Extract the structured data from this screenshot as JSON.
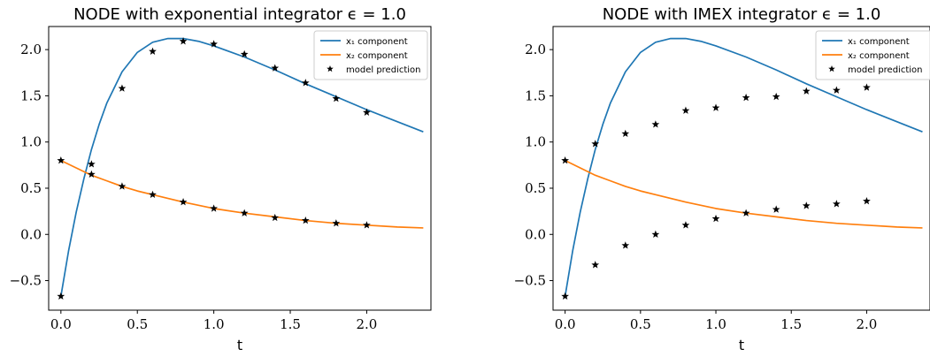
{
  "chart_data": [
    {
      "type": "line",
      "title": "NODE with exponential integrator ϵ = 1.0",
      "xlabel": "t",
      "ylabel": "",
      "xlim": [
        -0.08,
        2.42
      ],
      "ylim": [
        -0.82,
        2.25
      ],
      "xticks": [
        0.0,
        0.5,
        1.0,
        1.5,
        2.0
      ],
      "xtick_labels": [
        "0.0",
        "0.5",
        "1.0",
        "1.5",
        "2.0"
      ],
      "yticks": [
        -0.5,
        0.0,
        0.5,
        1.0,
        1.5,
        2.0
      ],
      "ytick_labels": [
        "−0.5",
        "0.0",
        "0.5",
        "1.0",
        "1.5",
        "2.0"
      ],
      "grid": false,
      "legend_position": "top-right",
      "series": [
        {
          "name": "x₁ component",
          "kind": "line",
          "color": "#1f77b4",
          "x": [
            0.0,
            0.05,
            0.1,
            0.15,
            0.2,
            0.25,
            0.3,
            0.4,
            0.5,
            0.6,
            0.7,
            0.8,
            0.9,
            1.0,
            1.2,
            1.4,
            1.6,
            1.8,
            2.0,
            2.2,
            2.37
          ],
          "y": [
            -0.67,
            -0.18,
            0.24,
            0.6,
            0.92,
            1.19,
            1.42,
            1.76,
            1.97,
            2.08,
            2.12,
            2.12,
            2.09,
            2.04,
            1.92,
            1.78,
            1.63,
            1.49,
            1.35,
            1.22,
            1.11
          ]
        },
        {
          "name": "x₂ component",
          "kind": "line",
          "color": "#ff7f0e",
          "x": [
            0.0,
            0.1,
            0.2,
            0.3,
            0.4,
            0.5,
            0.6,
            0.8,
            1.0,
            1.2,
            1.4,
            1.6,
            1.8,
            2.0,
            2.2,
            2.37
          ],
          "y": [
            0.8,
            0.72,
            0.64,
            0.58,
            0.52,
            0.47,
            0.43,
            0.35,
            0.28,
            0.23,
            0.19,
            0.15,
            0.12,
            0.1,
            0.08,
            0.07
          ]
        },
        {
          "name": "model prediction",
          "kind": "scatter",
          "marker": "star",
          "color": "#000000",
          "x": [
            0.0,
            0.2,
            0.4,
            0.6,
            0.8,
            1.0,
            1.2,
            1.4,
            1.6,
            1.8,
            2.0,
            0.0,
            0.2,
            0.4,
            0.6,
            0.8,
            1.0,
            1.2,
            1.4,
            1.6,
            1.8,
            2.0
          ],
          "y": [
            -0.67,
            0.76,
            1.58,
            1.98,
            2.09,
            2.06,
            1.95,
            1.8,
            1.64,
            1.47,
            1.32,
            0.8,
            0.65,
            0.52,
            0.43,
            0.35,
            0.28,
            0.23,
            0.18,
            0.15,
            0.12,
            0.1
          ]
        }
      ]
    },
    {
      "type": "line",
      "title": "NODE with IMEX integrator ϵ = 1.0",
      "xlabel": "t",
      "ylabel": "",
      "xlim": [
        -0.08,
        2.42
      ],
      "ylim": [
        -0.82,
        2.25
      ],
      "xticks": [
        0.0,
        0.5,
        1.0,
        1.5,
        2.0
      ],
      "xtick_labels": [
        "0.0",
        "0.5",
        "1.0",
        "1.5",
        "2.0"
      ],
      "yticks": [
        -0.5,
        0.0,
        0.5,
        1.0,
        1.5,
        2.0
      ],
      "ytick_labels": [
        "−0.5",
        "0.0",
        "0.5",
        "1.0",
        "1.5",
        "2.0"
      ],
      "grid": false,
      "legend_position": "top-right",
      "series": [
        {
          "name": "x₁ component",
          "kind": "line",
          "color": "#1f77b4",
          "x": [
            0.0,
            0.05,
            0.1,
            0.15,
            0.2,
            0.25,
            0.3,
            0.4,
            0.5,
            0.6,
            0.7,
            0.8,
            0.9,
            1.0,
            1.2,
            1.4,
            1.6,
            1.8,
            2.0,
            2.2,
            2.37
          ],
          "y": [
            -0.67,
            -0.18,
            0.24,
            0.6,
            0.92,
            1.19,
            1.42,
            1.76,
            1.97,
            2.08,
            2.12,
            2.12,
            2.09,
            2.04,
            1.92,
            1.78,
            1.63,
            1.49,
            1.35,
            1.22,
            1.11
          ]
        },
        {
          "name": "x₂ component",
          "kind": "line",
          "color": "#ff7f0e",
          "x": [
            0.0,
            0.1,
            0.2,
            0.3,
            0.4,
            0.5,
            0.6,
            0.8,
            1.0,
            1.2,
            1.4,
            1.6,
            1.8,
            2.0,
            2.2,
            2.37
          ],
          "y": [
            0.8,
            0.72,
            0.64,
            0.58,
            0.52,
            0.47,
            0.43,
            0.35,
            0.28,
            0.23,
            0.19,
            0.15,
            0.12,
            0.1,
            0.08,
            0.07
          ]
        },
        {
          "name": "model prediction",
          "kind": "scatter",
          "marker": "star",
          "color": "#000000",
          "x": [
            0.0,
            0.2,
            0.4,
            0.6,
            0.8,
            1.0,
            1.2,
            1.4,
            1.6,
            1.8,
            2.0,
            0.0,
            0.2,
            0.4,
            0.6,
            0.8,
            1.0,
            1.2,
            1.4,
            1.6,
            1.8,
            2.0
          ],
          "y": [
            -0.67,
            0.98,
            1.09,
            1.19,
            1.34,
            1.37,
            1.48,
            1.49,
            1.55,
            1.56,
            1.59,
            0.8,
            -0.33,
            -0.12,
            0.0,
            0.1,
            0.17,
            0.23,
            0.27,
            0.31,
            0.33,
            0.36
          ]
        }
      ]
    }
  ]
}
